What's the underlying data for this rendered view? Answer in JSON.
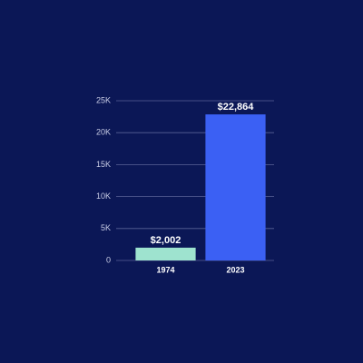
{
  "chart_data": {
    "type": "bar",
    "categories": [
      "1974",
      "2023"
    ],
    "values": [
      2002,
      22864
    ],
    "value_labels": [
      "$2,002",
      "$22,864"
    ],
    "colors": [
      "#9ee3cf",
      "#3b60f4"
    ],
    "ylim": [
      0,
      25000
    ],
    "yticks": [
      0,
      {
        "value": 5000,
        "label": "5K"
      },
      {
        "value": 10000,
        "label": "10K"
      },
      {
        "value": 15000,
        "label": "15K"
      },
      {
        "value": 20000,
        "label": "20K"
      },
      {
        "value": 25000,
        "label": "25K"
      }
    ],
    "grid": true
  }
}
